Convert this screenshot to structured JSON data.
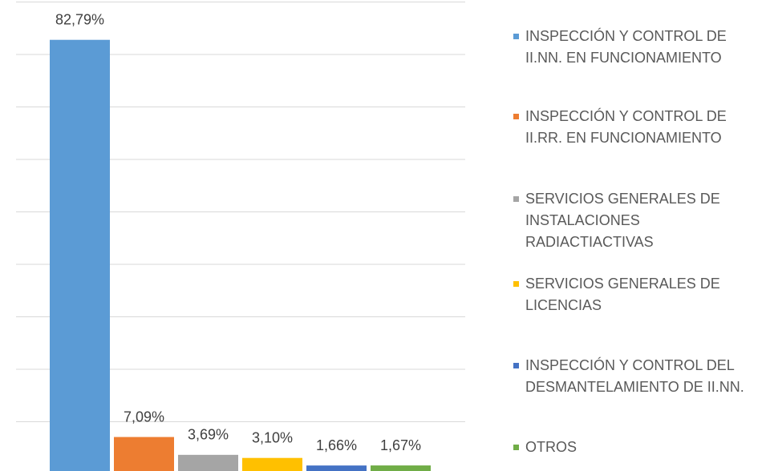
{
  "chart_data": {
    "type": "bar",
    "ylim": [
      0,
      90
    ],
    "yticks": [
      0,
      10,
      20,
      30,
      40,
      50,
      60,
      70,
      80,
      90
    ],
    "grid": true,
    "legend": "right",
    "series": [
      {
        "name": "INSPECCIÓN Y CONTROL DE II.NN. EN FUNCIONAMIENTO",
        "color": "#5b9bd5",
        "values": [
          82.79
        ],
        "value_labels": [
          "82,79%"
        ]
      },
      {
        "name": "INSPECCIÓN Y CONTROL DE II.RR. EN FUNCIONAMIENTO",
        "color": "#ed7d31",
        "values": [
          7.09
        ],
        "value_labels": [
          "7,09%"
        ]
      },
      {
        "name": "SERVICIOS GENERALES DE INSTALACIONES RADIACTIACTIVAS",
        "color": "#a5a5a5",
        "values": [
          3.69
        ],
        "value_labels": [
          "3,69%"
        ]
      },
      {
        "name": "SERVICIOS GENERALES DE LICENCIAS",
        "color": "#ffc000",
        "values": [
          3.1
        ],
        "value_labels": [
          "3,10%"
        ]
      },
      {
        "name": "INSPECCIÓN Y CONTROL DEL DESMANTELAMIENTO DE II.NN.",
        "color": "#4472c4",
        "values": [
          1.66
        ],
        "value_labels": [
          "1,66%"
        ]
      },
      {
        "name": "OTROS",
        "color": "#70ad47",
        "values": [
          1.67
        ],
        "value_labels": [
          "1,67%"
        ]
      }
    ]
  }
}
